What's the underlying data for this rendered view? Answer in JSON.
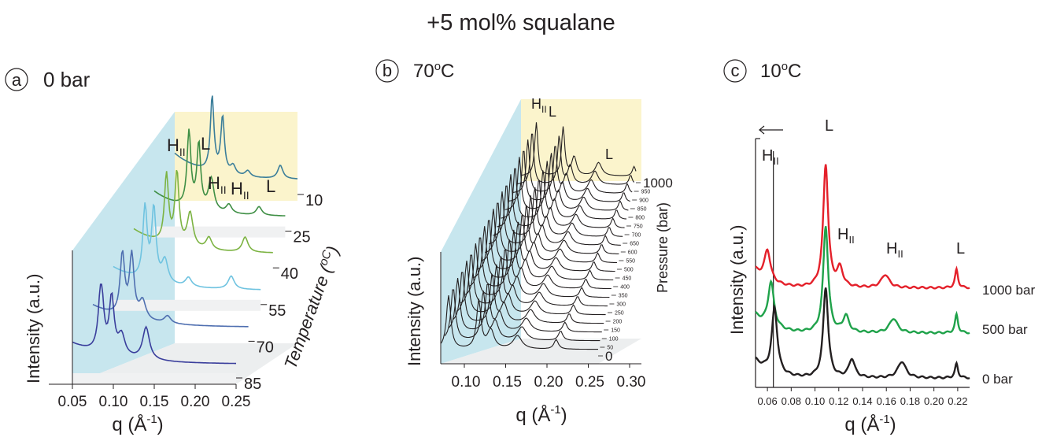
{
  "figure": {
    "title": "+5 mol% squalane"
  },
  "colors": {
    "text": "#231f20",
    "back_wall": "#fbf4cc",
    "side_wall": "#c7e6ee",
    "floor": "#e8e9ea",
    "red": "#e4202a",
    "green": "#1fa24a",
    "black": "#231f20"
  },
  "chart_data": [
    {
      "panel": "a",
      "type": "line",
      "style": "3d-waterfall",
      "title": "0 bar",
      "xlabel": "q (Å",
      "xlabel_sup": "-1",
      "xlabel_end": ")",
      "ylabel": "Intensity (a.u.)",
      "zlabel": "Temperature (",
      "zlabel_unit": "oC",
      "zlabel_end": ")",
      "x_ticks": [
        "0.05",
        "0.10",
        "0.15",
        "0.20",
        "0.25"
      ],
      "xlim": [
        0.05,
        0.25
      ],
      "series_axis": [
        10,
        25,
        40,
        55,
        70,
        85
      ],
      "z_ticks": [
        "10",
        "25",
        "40",
        "55",
        "70",
        "85"
      ],
      "series": [
        {
          "name": "10",
          "color": "#3b7e9a",
          "peaks": [
            [
              0.111,
              1.0
            ],
            [
              0.128,
              0.75
            ],
            [
              0.145,
              0.12
            ],
            [
              0.169,
              0.08
            ],
            [
              0.222,
              0.18
            ]
          ]
        },
        {
          "name": "25",
          "color": "#3f8f45",
          "peaks": [
            [
              0.103,
              1.05
            ],
            [
              0.118,
              0.9
            ],
            [
              0.137,
              0.45
            ],
            [
              0.164,
              0.12
            ],
            [
              0.21,
              0.12
            ]
          ]
        },
        {
          "name": "40",
          "color": "#7cb342",
          "peaks": [
            [
              0.097,
              1.0
            ],
            [
              0.112,
              1.05
            ],
            [
              0.131,
              0.5
            ],
            [
              0.158,
              0.18
            ],
            [
              0.21,
              0.22
            ]
          ]
        },
        {
          "name": "55",
          "color": "#6fc3e0",
          "peaks": [
            [
              0.093,
              1.1
            ],
            [
              0.105,
              1.1
            ],
            [
              0.12,
              0.35
            ],
            [
              0.152,
              0.14
            ],
            [
              0.21,
              0.2
            ]
          ]
        },
        {
          "name": "70",
          "color": "#4f6fb0",
          "peaks": [
            [
              0.088,
              1.0
            ],
            [
              0.1,
              1.0
            ],
            [
              0.114,
              0.3
            ],
            [
              0.146,
              0.12
            ]
          ]
        },
        {
          "name": "85",
          "color": "#3a3e9c",
          "peaks": [
            [
              0.085,
              1.25
            ],
            [
              0.098,
              0.95
            ],
            [
              0.11,
              0.35
            ],
            [
              0.14,
              0.55
            ]
          ]
        }
      ],
      "annotations": [
        {
          "text": "H",
          "sub": "II"
        },
        {
          "text": "L"
        },
        {
          "text": "H",
          "sub": "II"
        },
        {
          "text": "H",
          "sub": "II"
        },
        {
          "text": "L"
        }
      ]
    },
    {
      "panel": "b",
      "type": "line",
      "style": "3d-waterfall",
      "title": "70",
      "title_unit": "o",
      "title_end": "C",
      "xlabel": "q (Å",
      "xlabel_sup": "-1",
      "xlabel_end": ")",
      "ylabel": "Intensity (a.u.)",
      "zlabel": "Pressure (bar)",
      "x_ticks": [
        "0.10",
        "0.15",
        "0.20",
        "0.25",
        "0.30"
      ],
      "xlim": [
        0.06,
        0.3
      ],
      "z_ticks": [
        "1000",
        "950",
        "900",
        "850",
        "800",
        "750",
        "700",
        "650",
        "600",
        "550",
        "500",
        "450",
        "400",
        "350",
        "300",
        "250",
        "200",
        "150",
        "100",
        "50",
        "0"
      ],
      "series_axis": [
        0,
        50,
        100,
        150,
        200,
        250,
        300,
        350,
        400,
        450,
        500,
        550,
        600,
        650,
        700,
        750,
        800,
        850,
        900,
        950,
        1000
      ],
      "series_color": "#231f20",
      "annotations": [
        {
          "text": "H",
          "sub": "II"
        },
        {
          "text": "L"
        },
        {
          "text": "L"
        }
      ]
    },
    {
      "panel": "c",
      "type": "line",
      "title": "10",
      "title_unit": "o",
      "title_end": "C",
      "xlabel": "q (Å",
      "xlabel_sup": "-1",
      "xlabel_end": ")",
      "ylabel": "Intensity (a.u.)",
      "xlim": [
        0.05,
        0.23
      ],
      "x_ticks": [
        "0.06",
        "0.08",
        "0.10",
        "0.12",
        "0.14",
        "0.16",
        "0.18",
        "0.20",
        "0.22"
      ],
      "x_tick_values": [
        0.06,
        0.08,
        0.1,
        0.12,
        0.14,
        0.16,
        0.18,
        0.2,
        0.22
      ],
      "reference_line_q": 0.065,
      "series": [
        {
          "name": "1000 bar",
          "color": "#e4202a",
          "offset": 2.2,
          "peaks": [
            [
              0.06,
              0.75,
              0.003
            ],
            [
              0.109,
              3.0,
              0.0025
            ],
            [
              0.121,
              0.45,
              0.003
            ],
            [
              0.159,
              0.32,
              0.004
            ],
            [
              0.219,
              0.45,
              0.0015
            ]
          ]
        },
        {
          "name": "500 bar",
          "color": "#1fa24a",
          "offset": 1.1,
          "peaks": [
            [
              0.063,
              1.1,
              0.003
            ],
            [
              0.109,
              2.6,
              0.0025
            ],
            [
              0.126,
              0.4,
              0.003
            ],
            [
              0.166,
              0.35,
              0.004
            ],
            [
              0.219,
              0.45,
              0.0015
            ]
          ]
        },
        {
          "name": "0 bar",
          "color": "#231f20",
          "offset": 0.0,
          "peaks": [
            [
              0.066,
              1.6,
              0.0028
            ],
            [
              0.109,
              2.2,
              0.0025
            ],
            [
              0.131,
              0.45,
              0.003
            ],
            [
              0.173,
              0.4,
              0.004
            ],
            [
              0.219,
              0.35,
              0.0015
            ]
          ]
        }
      ],
      "annotations": [
        {
          "text": "H",
          "sub": "II"
        },
        {
          "text": "L"
        },
        {
          "text": "H",
          "sub": "II"
        },
        {
          "text": "H",
          "sub": "II"
        },
        {
          "text": "L"
        }
      ]
    }
  ],
  "panel_labels": [
    "a",
    "b",
    "c"
  ]
}
